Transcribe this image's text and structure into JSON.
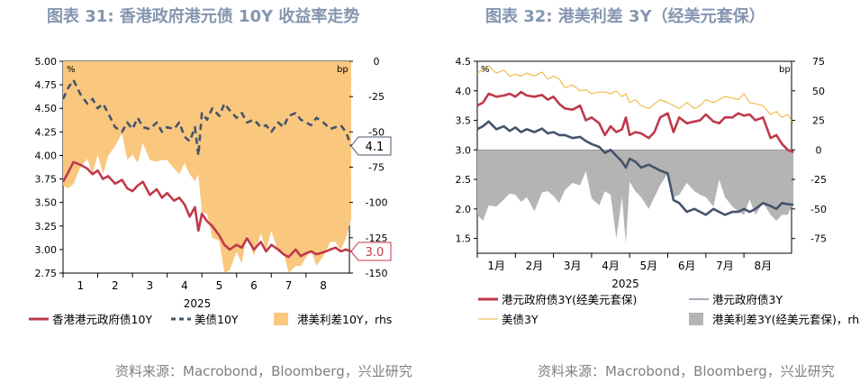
{
  "charts": {
    "left": {
      "title": "图表 31: 香港政府港元债 10Y 收益率走势",
      "source": "资料来源：Macrobond，Bloomberg，兴业研究"
    },
    "right": {
      "title": "图表 32: 港美利差 3Y（经美元套保）",
      "source": "资料来源：Macrobond，Bloomberg，兴业研究"
    }
  },
  "chart_data": [
    {
      "type": "line",
      "title": "图表 31: 香港政府港元债 10Y 收益率走势",
      "left_unit": "%",
      "right_unit": "bp",
      "year_label": "2025",
      "x_ticks": [
        "1",
        "2",
        "3",
        "4",
        "5",
        "6",
        "7",
        "8"
      ],
      "x": [
        0,
        0.15,
        0.3,
        0.5,
        0.7,
        0.85,
        1.0,
        1.15,
        1.3,
        1.5,
        1.7,
        1.85,
        2.0,
        2.15,
        2.3,
        2.5,
        2.7,
        2.85,
        3.0,
        3.2,
        3.35,
        3.5,
        3.65,
        3.8,
        3.9,
        4.0,
        4.15,
        4.3,
        4.5,
        4.65,
        4.8,
        5.0,
        5.15,
        5.3,
        5.5,
        5.7,
        5.85,
        6.0,
        6.2,
        6.35,
        6.5,
        6.7,
        6.85,
        7.0,
        7.15,
        7.3,
        7.5,
        7.7,
        7.85,
        8.0,
        8.15,
        8.3
      ],
      "y_left_range": [
        2.75,
        5.0
      ],
      "y_left_ticks": [
        "5.00",
        "4.75",
        "4.50",
        "4.25",
        "4.00",
        "3.75",
        "3.50",
        "3.25",
        "3.00",
        "2.75"
      ],
      "y_right_range": [
        -150,
        0
      ],
      "y_right_ticks": [
        "0",
        "-25",
        "-50",
        "-75",
        "-100",
        "-125",
        "-150"
      ],
      "series": [
        {
          "name": "香港港元政府债10Y",
          "axis": "left",
          "color": "#c0394b",
          "style": "solid",
          "values": [
            3.72,
            3.82,
            3.93,
            3.9,
            3.86,
            3.8,
            3.84,
            3.75,
            3.78,
            3.7,
            3.74,
            3.65,
            3.62,
            3.68,
            3.72,
            3.58,
            3.64,
            3.55,
            3.6,
            3.52,
            3.55,
            3.48,
            3.35,
            3.45,
            3.2,
            3.38,
            3.3,
            3.25,
            3.15,
            3.05,
            3.0,
            3.05,
            3.02,
            3.12,
            3.0,
            3.08,
            2.98,
            3.05,
            3.0,
            2.95,
            2.92,
            3.0,
            2.93,
            2.96,
            2.98,
            2.95,
            2.97,
            3.0,
            3.02,
            2.98,
            3.0,
            2.98
          ],
          "end_label": "3.0"
        },
        {
          "name": "美债10Y",
          "axis": "left",
          "color": "#44546a",
          "style": "dashed",
          "values": [
            4.6,
            4.72,
            4.8,
            4.65,
            4.55,
            4.6,
            4.5,
            4.55,
            4.45,
            4.3,
            4.25,
            4.35,
            4.28,
            4.4,
            4.3,
            4.28,
            4.35,
            4.25,
            4.3,
            4.28,
            4.35,
            4.2,
            4.15,
            4.3,
            4.0,
            4.45,
            4.38,
            4.5,
            4.42,
            4.55,
            4.48,
            4.4,
            4.45,
            4.35,
            4.38,
            4.3,
            4.32,
            4.25,
            4.35,
            4.3,
            4.42,
            4.45,
            4.38,
            4.35,
            4.32,
            4.4,
            4.35,
            4.28,
            4.3,
            4.32,
            4.25,
            4.1
          ],
          "end_label": "4.1"
        },
        {
          "name": "港美利差10Y，rhs",
          "axis": "right",
          "color": "#f9c77e",
          "style": "area",
          "values": [
            -88,
            -90,
            -87,
            -75,
            -69,
            -80,
            -66,
            -80,
            -67,
            -60,
            -51,
            -70,
            -66,
            -72,
            -58,
            -70,
            -71,
            -70,
            -70,
            -76,
            -80,
            -72,
            -80,
            -85,
            -80,
            -107,
            -108,
            -125,
            -127,
            -150,
            -148,
            -135,
            -143,
            -123,
            -138,
            -122,
            -134,
            -120,
            -135,
            -135,
            -150,
            -145,
            -145,
            -139,
            -134,
            -145,
            -138,
            -128,
            -128,
            -134,
            -125,
            -112
          ]
        }
      ]
    },
    {
      "type": "line",
      "title": "图表 32: 港美利差 3Y（经美元套保）",
      "left_unit": "%",
      "right_unit": "bp",
      "year_label": "2025",
      "x_ticks": [
        "1月",
        "2月",
        "3月",
        "4月",
        "5月",
        "6月",
        "7月",
        "8月"
      ],
      "x": [
        0,
        0.15,
        0.3,
        0.5,
        0.7,
        0.85,
        1.0,
        1.15,
        1.3,
        1.5,
        1.7,
        1.85,
        2.0,
        2.15,
        2.3,
        2.5,
        2.7,
        2.85,
        3.0,
        3.2,
        3.35,
        3.5,
        3.65,
        3.8,
        3.9,
        4.0,
        4.15,
        4.3,
        4.5,
        4.65,
        4.8,
        5.0,
        5.15,
        5.3,
        5.5,
        5.7,
        5.85,
        6.0,
        6.2,
        6.35,
        6.5,
        6.7,
        6.85,
        7.0,
        7.15,
        7.3,
        7.5,
        7.7,
        7.85,
        8.0,
        8.15,
        8.3
      ],
      "y_left_range": [
        1.25,
        4.5
      ],
      "y_left_ticks": [
        "4.5",
        "4.0",
        "3.5",
        "3.0",
        "2.5",
        "2.0",
        "1.5"
      ],
      "y_right_range": [
        -87.5,
        75
      ],
      "y_right_ticks": [
        "75",
        "50",
        "25",
        "0",
        "-25",
        "-50",
        "-75"
      ],
      "series": [
        {
          "name": "港元政府债3Y(经美元套保)",
          "axis": "left",
          "color": "#c0394b",
          "style": "solid",
          "values": [
            3.75,
            3.8,
            3.95,
            3.9,
            3.92,
            3.95,
            3.9,
            3.98,
            3.92,
            3.9,
            3.93,
            3.85,
            3.9,
            3.78,
            3.7,
            3.68,
            3.75,
            3.5,
            3.55,
            3.45,
            3.25,
            3.4,
            3.3,
            3.35,
            3.55,
            3.25,
            3.3,
            3.28,
            3.2,
            3.3,
            3.55,
            3.62,
            3.3,
            3.55,
            3.45,
            3.48,
            3.5,
            3.6,
            3.48,
            3.45,
            3.55,
            3.55,
            3.62,
            3.58,
            3.6,
            3.5,
            3.55,
            3.2,
            3.25,
            3.1,
            3.0,
            2.96
          ]
        },
        {
          "name": "港元政府债3Y",
          "axis": "left",
          "color": "#44546a",
          "style": "solid",
          "values": [
            3.35,
            3.4,
            3.48,
            3.35,
            3.4,
            3.32,
            3.38,
            3.3,
            3.35,
            3.3,
            3.36,
            3.28,
            3.3,
            3.25,
            3.25,
            3.2,
            3.22,
            3.15,
            3.1,
            3.05,
            2.95,
            3.0,
            2.9,
            2.8,
            2.7,
            2.85,
            2.8,
            2.7,
            2.75,
            2.7,
            2.65,
            2.6,
            2.15,
            2.1,
            1.95,
            2.0,
            1.95,
            1.9,
            2.0,
            1.95,
            1.9,
            1.95,
            1.95,
            2.0,
            1.95,
            2.0,
            2.1,
            2.05,
            2.0,
            2.1,
            2.08,
            2.07
          ]
        },
        {
          "name": "美债3Y",
          "axis": "left",
          "color": "#f0b030",
          "style": "thin",
          "values": [
            4.3,
            4.35,
            4.42,
            4.3,
            4.35,
            4.25,
            4.28,
            4.25,
            4.3,
            4.25,
            4.32,
            4.2,
            4.25,
            4.2,
            4.05,
            4.1,
            4.0,
            4.02,
            3.95,
            3.98,
            3.98,
            3.95,
            4.0,
            3.9,
            3.95,
            3.8,
            3.85,
            3.75,
            3.7,
            3.78,
            3.85,
            3.8,
            3.75,
            3.7,
            3.8,
            3.7,
            3.75,
            3.85,
            3.8,
            3.85,
            3.9,
            3.88,
            3.85,
            3.95,
            3.8,
            3.78,
            3.75,
            3.6,
            3.65,
            3.55,
            3.6,
            3.45
          ]
        },
        {
          "name": "港美利差3Y(经美元套保)，rhs",
          "axis": "right",
          "color": "#b4b4b4",
          "style": "area",
          "values": [
            -55,
            -60,
            -47,
            -48,
            -42,
            -37,
            -38,
            -44,
            -40,
            -52,
            -36,
            -35,
            -39,
            -45,
            -34,
            -28,
            -30,
            -18,
            -41,
            -47,
            -35,
            -38,
            -75,
            -40,
            -80,
            -27,
            -35,
            -40,
            -50,
            -40,
            -30,
            -20,
            -40,
            -38,
            -28,
            -35,
            -38,
            -40,
            -48,
            -25,
            -40,
            -48,
            -52,
            -55,
            -42,
            -55,
            -45,
            -55,
            -60,
            -55,
            -55,
            -45
          ]
        }
      ]
    }
  ],
  "legends": {
    "left": [
      {
        "label": "香港港元政府债10Y",
        "color": "#c0394b",
        "style": "solid"
      },
      {
        "label": "美债10Y",
        "color": "#44546a",
        "style": "dashed"
      },
      {
        "label": "港美利差10Y，rhs",
        "color": "#f9c77e",
        "style": "box"
      }
    ],
    "right": [
      {
        "label": "港元政府债3Y(经美元套保)",
        "color": "#c0394b",
        "style": "solid"
      },
      {
        "label": "港元政府债3Y",
        "color": "#44546a",
        "style": "thin"
      },
      {
        "label": "美债3Y",
        "color": "#f0b030",
        "style": "thin"
      },
      {
        "label": "港美利差3Y(经美元套保)，rhs",
        "color": "#b4b4b4",
        "style": "box"
      }
    ]
  }
}
